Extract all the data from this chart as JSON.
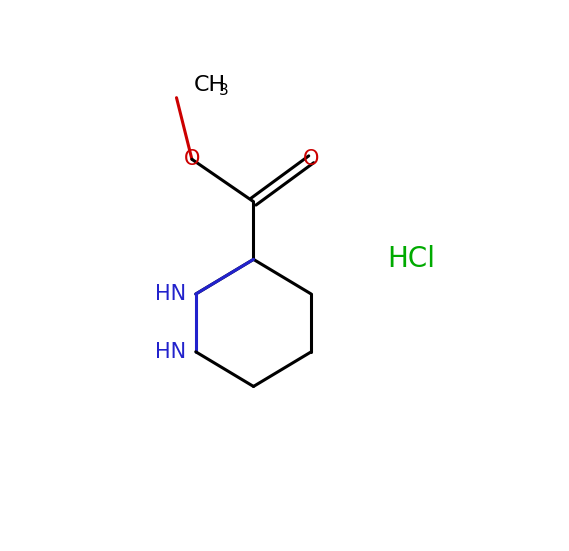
{
  "bg_color": "#ffffff",
  "bond_color": "#000000",
  "nitrogen_color": "#2222cc",
  "oxygen_color": "#cc0000",
  "hcl_color": "#00aa00",
  "figsize": [
    5.69,
    5.51
  ],
  "dpi": 100,
  "xlim": [
    0,
    5.69
  ],
  "ylim": [
    0,
    5.51
  ],
  "bond_lw": 2.2,
  "font_size_label": 15,
  "font_size_sub": 11,
  "font_size_hcl": 20,
  "CH3_x": 1.35,
  "CH3_y": 5.1,
  "Os_x": 1.55,
  "Os_y": 4.3,
  "Cc_x": 2.35,
  "Cc_y": 3.75,
  "Oc_x": 3.1,
  "Oc_y": 4.3,
  "C3_x": 2.35,
  "C3_y": 3.0,
  "N2_x": 1.6,
  "N2_y": 2.55,
  "N1_x": 1.6,
  "N1_y": 1.8,
  "C6_x": 2.35,
  "C6_y": 1.35,
  "C5_x": 3.1,
  "C5_y": 1.8,
  "C4_x": 3.1,
  "C4_y": 2.55,
  "HCl_x": 4.4,
  "HCl_y": 3.0
}
